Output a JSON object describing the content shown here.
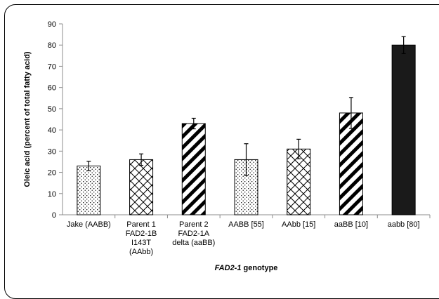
{
  "chart_data": {
    "type": "bar",
    "title": "",
    "xlabel_italic": "FAD2-1",
    "xlabel_rest": " genotype",
    "ylabel": "Oleic acid (percent of total fatty acid)",
    "ylim": [
      0,
      90
    ],
    "yticks": [
      0,
      10,
      20,
      30,
      40,
      50,
      60,
      70,
      80,
      90
    ],
    "grid": false,
    "legend": "none",
    "categories": [
      [
        "Jake (AABB)"
      ],
      [
        "Parent 1",
        "FAD2-1B",
        "I143T",
        "(AAbb)"
      ],
      [
        "Parent 2",
        "FAD2-1A",
        "delta (aaBB)"
      ],
      [
        "AABB [55]"
      ],
      [
        "AAbb [15]"
      ],
      [
        "aaBB [10]"
      ],
      [
        "aabb [80]"
      ]
    ],
    "values": [
      23,
      26,
      43,
      26,
      31,
      48,
      80
    ],
    "errors": [
      2.2,
      2.7,
      2.5,
      7.5,
      4.6,
      7.3,
      4.0
    ],
    "patterns": [
      "dots",
      "diamond",
      "diagonal",
      "dots",
      "diamond",
      "diagonal",
      "solid"
    ]
  }
}
